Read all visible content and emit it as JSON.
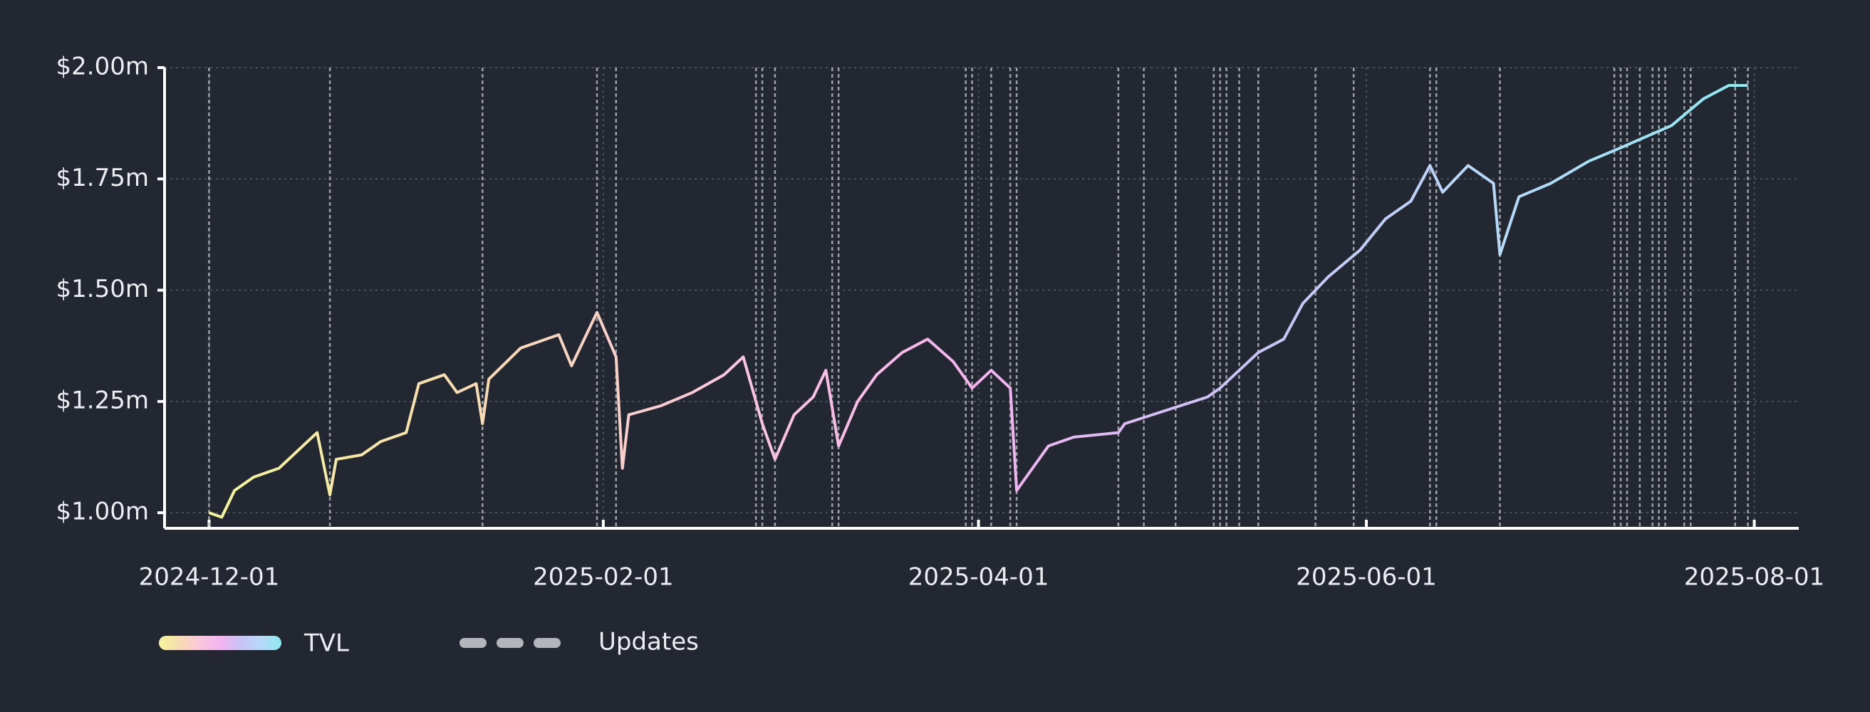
{
  "chart_data": {
    "type": "line",
    "x": [
      "2024-12-01",
      "2024-12-03",
      "2024-12-05",
      "2024-12-08",
      "2024-12-12",
      "2024-12-15",
      "2024-12-18",
      "2024-12-20",
      "2024-12-21",
      "2024-12-25",
      "2024-12-28",
      "2025-01-01",
      "2025-01-03",
      "2025-01-07",
      "2025-01-09",
      "2025-01-12",
      "2025-01-13",
      "2025-01-14",
      "2025-01-19",
      "2025-01-25",
      "2025-01-27",
      "2025-01-31",
      "2025-02-03",
      "2025-02-04",
      "2025-02-05",
      "2025-02-10",
      "2025-02-15",
      "2025-02-20",
      "2025-02-23",
      "2025-02-26",
      "2025-02-28",
      "2025-03-03",
      "2025-03-06",
      "2025-03-08",
      "2025-03-10",
      "2025-03-13",
      "2025-03-16",
      "2025-03-20",
      "2025-03-24",
      "2025-03-28",
      "2025-03-31",
      "2025-04-03",
      "2025-04-06",
      "2025-04-07",
      "2025-04-09",
      "2025-04-12",
      "2025-04-16",
      "2025-04-23",
      "2025-04-24",
      "2025-05-07",
      "2025-05-09",
      "2025-05-15",
      "2025-05-19",
      "2025-05-22",
      "2025-05-26",
      "2025-05-31",
      "2025-06-04",
      "2025-06-08",
      "2025-06-11",
      "2025-06-13",
      "2025-06-17",
      "2025-06-21",
      "2025-06-22",
      "2025-06-25",
      "2025-06-30",
      "2025-07-06",
      "2025-07-11",
      "2025-07-19",
      "2025-07-24",
      "2025-07-28",
      "2025-07-31"
    ],
    "series": [
      {
        "name": "TVL",
        "colors": [
          "#f4f59a",
          "#f7dcb0",
          "#fbc7dc",
          "#f6b3f0",
          "#c9c2f6",
          "#b8d9f8",
          "#8de9ef"
        ],
        "values": [
          1.0,
          0.99,
          1.05,
          1.08,
          1.1,
          1.14,
          1.18,
          1.04,
          1.12,
          1.13,
          1.16,
          1.18,
          1.29,
          1.31,
          1.27,
          1.29,
          1.2,
          1.3,
          1.37,
          1.4,
          1.33,
          1.45,
          1.35,
          1.1,
          1.22,
          1.24,
          1.27,
          1.31,
          1.35,
          1.2,
          1.12,
          1.22,
          1.26,
          1.32,
          1.15,
          1.25,
          1.31,
          1.36,
          1.39,
          1.34,
          1.28,
          1.32,
          1.28,
          1.05,
          1.09,
          1.15,
          1.17,
          1.18,
          1.2,
          1.26,
          1.28,
          1.36,
          1.39,
          1.47,
          1.53,
          1.59,
          1.66,
          1.7,
          1.78,
          1.72,
          1.78,
          1.74,
          1.58,
          1.71,
          1.74,
          1.79,
          1.82,
          1.87,
          1.93,
          1.96,
          1.96
        ]
      }
    ],
    "updates": {
      "name": "Updates",
      "color": "#b4b6bc",
      "x": [
        "2024-12-01",
        "2024-12-20",
        "2025-01-13",
        "2025-01-31",
        "2025-02-03",
        "2025-02-25",
        "2025-02-26",
        "2025-02-28",
        "2025-03-09",
        "2025-03-10",
        "2025-03-30",
        "2025-03-31",
        "2025-04-03",
        "2025-04-06",
        "2025-04-07",
        "2025-04-23",
        "2025-04-27",
        "2025-05-02",
        "2025-05-08",
        "2025-05-09",
        "2025-05-10",
        "2025-05-12",
        "2025-05-15",
        "2025-05-24",
        "2025-05-30",
        "2025-06-11",
        "2025-06-12",
        "2025-06-22",
        "2025-07-10",
        "2025-07-11",
        "2025-07-12",
        "2025-07-14",
        "2025-07-16",
        "2025-07-17",
        "2025-07-18",
        "2025-07-21",
        "2025-07-22",
        "2025-07-29",
        "2025-07-31"
      ]
    },
    "xlim": [
      "2024-11-24",
      "2025-08-08"
    ],
    "xticks": [
      "2024-12-01",
      "2025-02-01",
      "2025-04-01",
      "2025-06-01",
      "2025-08-01"
    ],
    "ylim": [
      0.965,
      2.0
    ],
    "yticks": [
      {
        "value": 1.0,
        "label": "$1.00m"
      },
      {
        "value": 1.25,
        "label": "$1.25m"
      },
      {
        "value": 1.5,
        "label": "$1.50m"
      },
      {
        "value": 1.75,
        "label": "$1.75m"
      },
      {
        "value": 2.0,
        "label": "$2.00m"
      }
    ],
    "grid": true
  }
}
